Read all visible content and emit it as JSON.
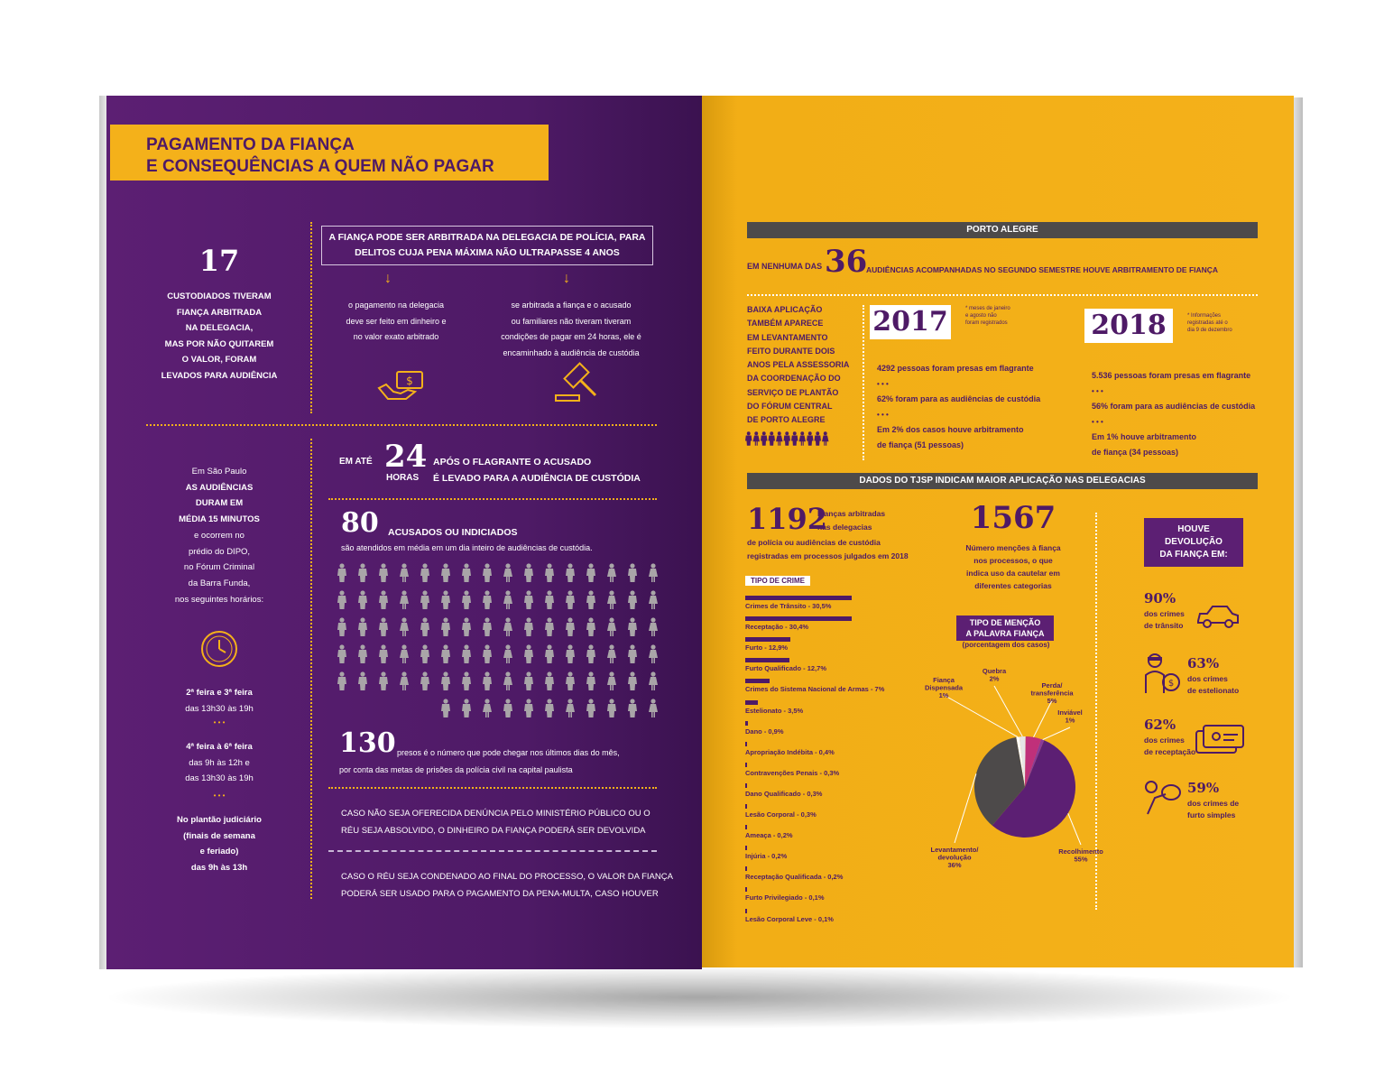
{
  "left": {
    "title_line1": "PAGAMENTO DA FIANÇA",
    "title_line2": "E CONSEQUÊNCIAS A QUEM NÃO PAGAR",
    "stat17": {
      "number": "17",
      "text": [
        "CUSTODIADOS TIVERAM",
        "FIANÇA ARBITRADA",
        "NA DELEGACIA,",
        "MAS POR NÃO QUITAREM",
        "O VALOR, FORAM",
        "LEVADOS PARA AUDIÊNCIA"
      ]
    },
    "box_line1": "A FIANÇA PODE SER ARBITRADA NA DELEGACIA DE POLÍCIA, PARA",
    "box_line2": "DELITOS CUJA PENA MÁXIMA NÃO ULTRAPASSE 4 ANOS",
    "col1": [
      "o pagamento na delegacia",
      "deve ser feito em dinheiro e",
      "no valor exato arbitrado"
    ],
    "col2": [
      "se arbitrada a fiança e o acusado",
      "ou familiares não tiveram tiveram",
      "condições de pagar em 24 horas, ele é",
      "encaminhado à audiência de custódia"
    ],
    "sp_text": [
      "Em São Paulo",
      "AS AUDIÊNCIAS",
      "DURAM EM",
      "MÉDIA 15 MINUTOS",
      "e ocorrem no",
      "prédio do DIPO,",
      "no Fórum Criminal",
      "da Barra Funda,",
      "nos seguintes horários:"
    ],
    "schedule1": [
      "2ª feira e 3ª feira",
      "das 13h30 às 19h"
    ],
    "schedule2": [
      "4ª feira à 6ª feira",
      "das 9h às 12h e",
      "das 13h30 às 19h"
    ],
    "schedule3": [
      "No plantão judiciário",
      "(finais de semana",
      "e feriado)",
      "das 9h às 13h"
    ],
    "dots": "• • •",
    "h24_pre": "EM ATÉ",
    "h24_num": "24",
    "h24_unit": "HORAS",
    "h24_line1": "APÓS O FLAGRANTE O ACUSADO",
    "h24_line2": "É LEVADO PARA A AUDIÊNCIA DE CUSTÓDIA",
    "n80": "80",
    "n80_label": "ACUSADOS OU INDICIADOS",
    "n80_sub": "são atendidos em média em um dia inteiro de audiências de custódia.",
    "n130": "130",
    "n130_line1": "presos é o número que pode chegar nos últimos dias do mês,",
    "n130_line2": "por conta das metas de prisões da polícia civil na capital paulista",
    "cond1_line1": "CASO NÃO SEJA OFERECIDA DENÚNCIA PELO MINISTÉRIO PÚBLICO OU O",
    "cond1_line2": "RÉU SEJA ABSOLVIDO, O DINHEIRO DA FIANÇA PODERÁ SER DEVOLVIDA",
    "cond2_line1": "CASO O RÉU SEJA CONDENADO AO FINAL DO PROCESSO, O VALOR DA FIANÇA",
    "cond2_line2": "PODERÁ SER USADO PARA O PAGAMENTO DA PENA-MULTA, CASO HOUVER"
  },
  "right": {
    "porto_header": "PORTO ALEGRE",
    "nenhuma_pre": "EM NENHUMA DAS",
    "nenhuma_num": "36",
    "nenhuma_post": "AUDIÊNCIAS ACOMPANHADAS NO SEGUNDO SEMESTRE HOUVE ARBITRAMENTO DE FIANÇA",
    "baixa": [
      "BAIXA APLICAÇÃO",
      "TAMBÉM APARECE",
      "EM LEVANTAMENTO",
      "FEITO DURANTE DOIS",
      "ANOS PELA ASSESSORIA",
      "DA COORDENAÇÃO DO",
      "SERVIÇO DE PLANTÃO",
      "DO FÓRUM CENTRAL",
      "DE PORTO ALEGRE"
    ],
    "y2017": "2017",
    "y2017_note": [
      "* meses de janeiro",
      "e agosto não",
      "foram registrados"
    ],
    "y2017_items": [
      "4292 pessoas foram presas em flagrante",
      "62% foram para as audiências de custódia",
      "Em 2% dos casos houve arbitramento",
      "de fiança (51 pessoas)"
    ],
    "y2018": "2018",
    "y2018_note": [
      "* Informações",
      "registradas até o",
      "dia 9 de dezembro"
    ],
    "y2018_items": [
      "5.536 pessoas foram presas em flagrante",
      "56% foram para as audiências de custódia",
      "Em 1% houve arbitramento",
      "de fiança (34 pessoas)"
    ],
    "dots": "• • •",
    "tjsp_header": "DADOS DO TJSP INDICAM MAIOR APLICAÇÃO NAS DELEGACIAS",
    "n1192": "1192",
    "n1192_text": [
      "Fianças arbitradas",
      "nas delegacias",
      "de polícia ou audiências de custódia",
      "registradas em processos julgados em 2018"
    ],
    "n1567": "1567",
    "n1567_text": [
      "Número menções à fiança",
      "nos processos, o que",
      "indica uso da cautelar em",
      "diferentes categorias"
    ],
    "tipo_crime": "TIPO DE CRIME",
    "mencao_title": [
      "TIPO DE MENÇÃO",
      "A PALAVRA FIANÇA"
    ],
    "mencao_sub": "(porcentagem dos casos)",
    "devolucao_title": [
      "HOUVE",
      "DEVOLUÇÃO",
      "DA FIANÇA EM:"
    ],
    "dev": [
      {
        "pct": "90%",
        "text": [
          "dos crimes",
          "de trânsito"
        ]
      },
      {
        "pct": "63%",
        "text": [
          "dos crimes",
          "de estelionato"
        ]
      },
      {
        "pct": "62%",
        "text": [
          "dos crimes",
          "de receptação"
        ]
      },
      {
        "pct": "59%",
        "text": [
          "dos crimes de",
          "furto simples"
        ]
      }
    ]
  },
  "chart_data": [
    {
      "type": "bar",
      "title": "TIPO DE CRIME",
      "categories": [
        "Crimes de Trânsito",
        "Receptação",
        "Furto",
        "Furto Qualificado",
        "Crimes do Sistema Nacional de Armas",
        "Estelionato",
        "Dano",
        "Apropriação Indébita",
        "Contravenções Penais",
        "Dano Qualificado",
        "Lesão Corporal",
        "Ameaça",
        "Injúria",
        "Receptação Qualificada",
        "Furto Privilegiado",
        "Lesão Corporal Leve"
      ],
      "labels": [
        "Crimes de Trânsito - 30,5%",
        "Receptação - 30,4%",
        "Furto - 12,9%",
        "Furto Qualificado - 12,7%",
        "Crimes do Sistema Nacional de Armas - 7%",
        "Estelionato - 3,5%",
        "Dano - 0,9%",
        "Apropriação Indébita - 0,4%",
        "Contravenções Penais - 0,3%",
        "Dano Qualificado - 0,3%",
        "Lesão Corporal - 0,3%",
        "Ameaça - 0,2%",
        "Injúria - 0,2%",
        "Receptação Qualificada - 0,2%",
        "Furto Privilegiado - 0,1%",
        "Lesão Corporal Leve - 0,1%"
      ],
      "values": [
        30.5,
        30.4,
        12.9,
        12.7,
        7,
        3.5,
        0.9,
        0.4,
        0.3,
        0.3,
        0.3,
        0.2,
        0.2,
        0.2,
        0.1,
        0.1
      ]
    },
    {
      "type": "pie",
      "title": "TIPO DE MENÇÃO A PALAVRA FIANÇA",
      "categories": [
        "Recolhimento",
        "Levantamento/ devolução",
        "Fiança Dispensada",
        "Quebra",
        "Perda/ transferência",
        "Inviável"
      ],
      "labels": [
        "Recolhimento 55%",
        "Levantamento/ devolução 36%",
        "Fiança Dispensada 1%",
        "Quebra 2%",
        "Perda/ transferência 5%",
        "Inviável 1%"
      ],
      "values": [
        55,
        36,
        1,
        2,
        5,
        1
      ],
      "colors": [
        "#5c1f73",
        "#4d4a4a",
        "#ffffff",
        "#e6e6e6",
        "#c0307a",
        "#8a3a9a"
      ]
    }
  ]
}
